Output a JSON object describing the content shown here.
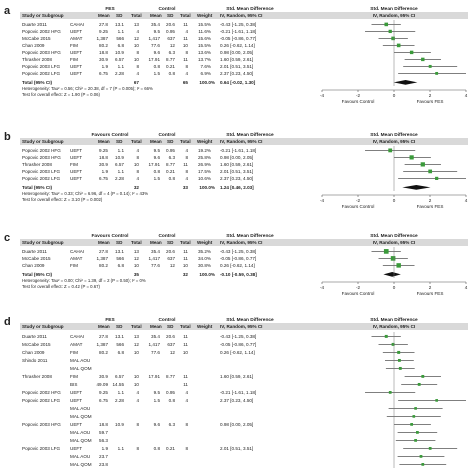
{
  "panels": [
    {
      "letter": "a",
      "group_exp": "FES",
      "group_ctl": "Control",
      "header_cols": [
        "Study or Subgroup",
        "",
        "Mean",
        "SD",
        "Total",
        "Mean",
        "SD",
        "Total",
        "Weight"
      ],
      "effect_title": "Std. Mean Difference",
      "effect_sub": "IV, Random, 95% CI",
      "plot_title": "Std. Mean Difference",
      "plot_sub": "IV, Random, 95% CI",
      "rows": [
        {
          "study": "Duarte 2011",
          "outcome": "CAHAI",
          "m1": "27.8",
          "sd1": "13.1",
          "n1": "13",
          "m2": "35.4",
          "sd2": "20.6",
          "n2": "11",
          "weight": "15.5%",
          "ci": "-0.43 [-1.25, 0.38]",
          "est": -0.43,
          "lo": -1.25,
          "hi": 0.38,
          "wt": 15.5
        },
        {
          "study": "Popovic 2002 HFG",
          "outcome": "UEFT",
          "m1": "9.25",
          "sd1": "1.1",
          "n1": "4",
          "m2": "9.5",
          "sd2": "0.95",
          "n2": "4",
          "weight": "11.6%",
          "ci": "-0.21 [-1.61, 1.18]",
          "est": -0.21,
          "lo": -1.61,
          "hi": 1.18,
          "wt": 11.6
        },
        {
          "study": "McCabe 2015",
          "outcome": "AMAT",
          "m1": "1,387",
          "sd1": "566",
          "n1": "12",
          "m2": "1,417",
          "sd2": "637",
          "n2": "11",
          "weight": "15.6%",
          "ci": "-0.05 [-0.86, 0.77]",
          "est": -0.05,
          "lo": -0.86,
          "hi": 0.77,
          "wt": 15.6
        },
        {
          "study": "Chan 2009",
          "outcome": "FIM",
          "m1": "80.2",
          "sd1": "6.8",
          "n1": "10",
          "m2": "77.6",
          "sd2": "12",
          "n2": "10",
          "weight": "15.5%",
          "ci": "0.26 [-0.62, 1.14]",
          "est": 0.26,
          "lo": -0.62,
          "hi": 1.14,
          "wt": 15.5
        },
        {
          "study": "Popovic 2003 HFG",
          "outcome": "UEFT",
          "m1": "18.8",
          "sd1": "10.9",
          "n1": "8",
          "m2": "9.6",
          "sd2": "6.3",
          "n2": "8",
          "weight": "13.6%",
          "ci": "0.98 [0.00, 2.05]",
          "est": 0.98,
          "lo": 0.0,
          "hi": 2.05,
          "wt": 13.6
        },
        {
          "study": "Thrasher 2008",
          "outcome": "FIM",
          "m1": "30.9",
          "sd1": "6.57",
          "n1": "10",
          "m2": "17.91",
          "sd2": "8.77",
          "n2": "11",
          "weight": "13.7%",
          "ci": "1.60 [0.59, 2.61]",
          "est": 1.6,
          "lo": 0.59,
          "hi": 2.61,
          "wt": 13.7
        },
        {
          "study": "Popovic 2003 LFG",
          "outcome": "UEFT",
          "m1": "1.9",
          "sd1": "1.1",
          "n1": "8",
          "m2": "0.8",
          "sd2": "0.21",
          "n2": "8",
          "weight": "7.6%",
          "ci": "2.01 [0.51, 3.51]",
          "est": 2.01,
          "lo": 0.51,
          "hi": 3.51,
          "wt": 7.6
        },
        {
          "study": "Popovic 2002 LFG",
          "outcome": "UEFT",
          "m1": "6.75",
          "sd1": "2.28",
          "n1": "4",
          "m2": "1.5",
          "sd2": "0.8",
          "n2": "4",
          "weight": "6.9%",
          "ci": "2.37 [0.23, 4.50]",
          "est": 2.37,
          "lo": 0.23,
          "hi": 4.5,
          "wt": 6.9
        }
      ],
      "total": {
        "label": "Total (95% CI)",
        "n1": "67",
        "n2": "65",
        "weight": "100.0%",
        "ci": "0.64 [-0.02, 1.30]",
        "est": 0.64,
        "lo": -0.02,
        "hi": 1.3
      },
      "het": "Heterogeneity: Tau² = 0.56; Chi² = 20.38, df = 7 (P = 0.005); I² = 66%",
      "overall": "Test for overall effect: Z = 1.90 (P = 0.06)",
      "axis_ticks": [
        -4,
        -2,
        0,
        2,
        4
      ],
      "favours_left": "Favours Control",
      "favours_right": "Favours FES"
    },
    {
      "letter": "b",
      "group_exp": "Favours Control",
      "group_ctl": "Control",
      "header_cols": [
        "Study or Subgroup",
        "",
        "Mean",
        "SD",
        "Total",
        "Mean",
        "SD",
        "Total",
        "Weight"
      ],
      "effect_title": "Std. Mean Difference",
      "effect_sub": "IV, Random, 95% CI",
      "plot_title": "Std. Mean Difference",
      "plot_sub": "IV, Random, 95% CI",
      "rows": [
        {
          "study": "Popovic 2002 HFG",
          "outcome": "UEFT",
          "m1": "9.25",
          "sd1": "1.1",
          "n1": "4",
          "m2": "9.5",
          "sd2": "0.95",
          "n2": "4",
          "weight": "19.2%",
          "ci": "-0.21 [-1.61, 1.18]",
          "est": -0.21,
          "lo": -1.61,
          "hi": 1.18,
          "wt": 19.2
        },
        {
          "study": "Popovic 2003 HFG",
          "outcome": "UEFT",
          "m1": "18.8",
          "sd1": "10.9",
          "n1": "8",
          "m2": "9.6",
          "sd2": "6.3",
          "n2": "8",
          "weight": "25.8%",
          "ci": "0.98 [0.00, 2.05]",
          "est": 0.98,
          "lo": 0.0,
          "hi": 2.05,
          "wt": 25.8
        },
        {
          "study": "Thrasher 2008",
          "outcome": "FIM",
          "m1": "30.9",
          "sd1": "6.57",
          "n1": "10",
          "m2": "17.91",
          "sd2": "8.77",
          "n2": "11",
          "weight": "26.9%",
          "ci": "1.60 [0.59, 2.61]",
          "est": 1.6,
          "lo": 0.59,
          "hi": 2.61,
          "wt": 26.9
        },
        {
          "study": "Popovic 2003 LFG",
          "outcome": "UEFT",
          "m1": "1.9",
          "sd1": "1.1",
          "n1": "8",
          "m2": "0.8",
          "sd2": "0.21",
          "n2": "8",
          "weight": "17.5%",
          "ci": "2.01 [0.51, 3.51]",
          "est": 2.01,
          "lo": 0.51,
          "hi": 3.51,
          "wt": 17.5
        },
        {
          "study": "Popovic 2002 LFG",
          "outcome": "UEFT",
          "m1": "6.75",
          "sd1": "2.28",
          "n1": "4",
          "m2": "1.5",
          "sd2": "0.8",
          "n2": "4",
          "weight": "10.6%",
          "ci": "2.37 [0.23, 4.50]",
          "est": 2.37,
          "lo": 0.23,
          "hi": 4.5,
          "wt": 10.6
        }
      ],
      "total": {
        "label": "Total (95% CI)",
        "n1": "32",
        "n2": "33",
        "weight": "100.0%",
        "ci": "1.24 [0.46, 2.03]",
        "est": 1.24,
        "lo": 0.46,
        "hi": 2.03
      },
      "het": "Heterogeneity: Tau² = 0.33; Chi² = 6.96, df = 4 (P = 0.14); I² = 43%",
      "overall": "Test for overall effect: Z = 3.10 (P = 0.002)",
      "axis_ticks": [
        -4,
        -2,
        0,
        2,
        4
      ],
      "favours_left": "Favours Control",
      "favours_right": "Favours FES"
    },
    {
      "letter": "c",
      "group_exp": "Favours Control",
      "group_ctl": "Control",
      "header_cols": [
        "Study or Subgroup",
        "",
        "Mean",
        "SD",
        "Total",
        "Mean",
        "SD",
        "Total",
        "Weight"
      ],
      "effect_title": "Std. Mean Difference",
      "effect_sub": "IV, Random, 95% CI",
      "plot_title": "Std. Mean Difference",
      "plot_sub": "IV, Random, 95% CI",
      "rows": [
        {
          "study": "Duarte 2011",
          "outcome": "CAHAI",
          "m1": "27.8",
          "sd1": "13.1",
          "n1": "13",
          "m2": "35.4",
          "sd2": "20.6",
          "n2": "11",
          "weight": "35.2%",
          "ci": "-0.43 [-1.25, 0.38]",
          "est": -0.43,
          "lo": -1.25,
          "hi": 0.38,
          "wt": 35.2
        },
        {
          "study": "McCabe 2015",
          "outcome": "AMAT",
          "m1": "1,387",
          "sd1": "566",
          "n1": "12",
          "m2": "1,417",
          "sd2": "637",
          "n2": "11",
          "weight": "34.0%",
          "ci": "-0.05 [-0.86, 0.77]",
          "est": -0.05,
          "lo": -0.86,
          "hi": 0.77,
          "wt": 34.0
        },
        {
          "study": "Chan 2009",
          "outcome": "FIM",
          "m1": "80.2",
          "sd1": "6.8",
          "n1": "10",
          "m2": "77.6",
          "sd2": "12",
          "n2": "10",
          "weight": "30.8%",
          "ci": "0.26 [-0.62, 1.14]",
          "est": 0.26,
          "lo": -0.62,
          "hi": 1.14,
          "wt": 30.8
        }
      ],
      "total": {
        "label": "Total (95% CI)",
        "n1": "35",
        "n2": "32",
        "weight": "100.0%",
        "ci": "-0.10 [-0.59, 0.38]",
        "est": -0.1,
        "lo": -0.59,
        "hi": 0.38
      },
      "het": "Heterogeneity: Tau² = 0.00; Chi² = 1.39, df = 2 (P = 0.50); I² = 0%",
      "overall": "Test for overall effect: Z = 0.42 (P = 0.67)",
      "axis_ticks": [
        -4,
        -2,
        0,
        2,
        4
      ],
      "favours_left": "Favours Control",
      "favours_right": "Favours FES"
    },
    {
      "letter": "d",
      "group_exp": "FES",
      "group_ctl": "Control",
      "header_cols": [
        "Study or Subgroup",
        "",
        "Mean",
        "SD",
        "Total",
        "Mean",
        "SD",
        "Total",
        "Weight"
      ],
      "effect_title": "Std. Mean Difference",
      "effect_sub": "IV, Random, 95% CI",
      "plot_title": "Std. Mean Difference",
      "plot_sub": "IV, Random, 95% CI",
      "rows": [
        {
          "study": "Duarte 2011",
          "outcome": "CAHAI",
          "m1": "27.8",
          "sd1": "13.1",
          "n1": "13",
          "m2": "35.4",
          "sd2": "20.6",
          "n2": "11",
          "weight": "",
          "ci": "-0.43 [-1.25, 0.38]",
          "est": -0.43,
          "lo": -1.25,
          "hi": 0.38,
          "wt": 8
        },
        {
          "study": "McCabe 2015",
          "outcome": "AMAT",
          "m1": "1,387",
          "sd1": "566",
          "n1": "12",
          "m2": "1,417",
          "sd2": "637",
          "n2": "11",
          "weight": "",
          "ci": "-0.05 [-0.86, 0.77]",
          "est": -0.05,
          "lo": -0.86,
          "hi": 0.77,
          "wt": 8
        },
        {
          "study": "Chan 2009",
          "outcome": "FIM",
          "m1": "80.2",
          "sd1": "6.8",
          "n1": "10",
          "m2": "77.6",
          "sd2": "12",
          "n2": "10",
          "weight": "",
          "ci": "0.26 [-0.62, 1.14]",
          "est": 0.26,
          "lo": -0.62,
          "hi": 1.14,
          "wt": 8
        },
        {
          "study": "Shindo 2011",
          "outcome": "MAL AOU",
          "m1": "",
          "sd1": "",
          "n1": "",
          "m2": "",
          "sd2": "",
          "n2": "",
          "weight": "",
          "ci": "",
          "est": 0.3,
          "lo": -0.5,
          "hi": 1.1,
          "wt": 7
        },
        {
          "study": "",
          "outcome": "MAL QOM",
          "m1": "",
          "sd1": "",
          "n1": "",
          "m2": "",
          "sd2": "",
          "n2": "",
          "weight": "",
          "ci": "",
          "est": 0.35,
          "lo": -0.45,
          "hi": 1.15,
          "wt": 7
        },
        {
          "study": "Thrasher 2008",
          "outcome": "FIM",
          "m1": "30.9",
          "sd1": "6.57",
          "n1": "10",
          "m2": "17.91",
          "sd2": "8.77",
          "n2": "11",
          "weight": "",
          "ci": "1.60 [0.59, 2.61]",
          "est": 1.6,
          "lo": 0.59,
          "hi": 2.61,
          "wt": 7
        },
        {
          "study": "",
          "outcome": "BIS",
          "m1": "49.09",
          "sd1": "14.55",
          "n1": "10",
          "m2": "",
          "sd2": "",
          "n2": "11",
          "weight": "",
          "ci": "",
          "est": 1.4,
          "lo": 0.4,
          "hi": 2.4,
          "wt": 7
        },
        {
          "study": "Popovic 2002 HFG",
          "outcome": "UEFT",
          "m1": "9.25",
          "sd1": "1.1",
          "n1": "4",
          "m2": "9.5",
          "sd2": "0.95",
          "n2": "4",
          "weight": "",
          "ci": "-0.21 [-1.61, 1.18]",
          "est": -0.21,
          "lo": -1.61,
          "hi": 1.18,
          "wt": 6
        },
        {
          "study": "Popovic 2002 LFG",
          "outcome": "UEFT",
          "m1": "6.75",
          "sd1": "2.28",
          "n1": "4",
          "m2": "1.5",
          "sd2": "0.8",
          "n2": "4",
          "weight": "",
          "ci": "2.37 [0.23, 4.50]",
          "est": 2.37,
          "lo": 0.23,
          "hi": 4.5,
          "wt": 5
        },
        {
          "study": "",
          "outcome": "MAL AOU",
          "m1": "",
          "sd1": "",
          "n1": "",
          "m2": "",
          "sd2": "",
          "n2": "",
          "weight": "",
          "ci": "",
          "est": 1.2,
          "lo": -0.3,
          "hi": 2.7,
          "wt": 5
        },
        {
          "study": "",
          "outcome": "MAL QOM",
          "m1": "",
          "sd1": "",
          "n1": "",
          "m2": "",
          "sd2": "",
          "n2": "",
          "weight": "",
          "ci": "",
          "est": 1.1,
          "lo": -0.4,
          "hi": 2.6,
          "wt": 5
        },
        {
          "study": "Popovic 2003 HFG",
          "outcome": "UEFT",
          "m1": "18.8",
          "sd1": "10.9",
          "n1": "8",
          "m2": "9.6",
          "sd2": "6.3",
          "n2": "8",
          "weight": "",
          "ci": "0.98 [0.00, 2.05]",
          "est": 0.98,
          "lo": 0.0,
          "hi": 2.05,
          "wt": 6
        },
        {
          "study": "",
          "outcome": "MAL AOU",
          "m1": "59.7",
          "sd1": "",
          "n1": "",
          "m2": "",
          "sd2": "",
          "n2": "",
          "weight": "",
          "ci": "",
          "est": 1.3,
          "lo": 0.2,
          "hi": 2.4,
          "wt": 6
        },
        {
          "study": "",
          "outcome": "MAL QOM",
          "m1": "56.3",
          "sd1": "",
          "n1": "",
          "m2": "",
          "sd2": "",
          "n2": "",
          "weight": "",
          "ci": "",
          "est": 1.2,
          "lo": 0.1,
          "hi": 2.3,
          "wt": 6
        },
        {
          "study": "Popovic 2003 LFG",
          "outcome": "UEFT",
          "m1": "1.9",
          "sd1": "1.1",
          "n1": "8",
          "m2": "0.8",
          "sd2": "0.21",
          "n2": "8",
          "weight": "",
          "ci": "2.01 [0.51, 3.51]",
          "est": 2.01,
          "lo": 0.51,
          "hi": 3.51,
          "wt": 6
        },
        {
          "study": "",
          "outcome": "MAL AOU",
          "m1": "23.7",
          "sd1": "",
          "n1": "",
          "m2": "",
          "sd2": "",
          "n2": "",
          "weight": "",
          "ci": "",
          "est": 1.5,
          "lo": 0.2,
          "hi": 2.8,
          "wt": 6
        },
        {
          "study": "",
          "outcome": "MAL QOM",
          "m1": "23.8",
          "sd1": "",
          "n1": "",
          "m2": "",
          "sd2": "",
          "n2": "",
          "weight": "",
          "ci": "",
          "est": 1.6,
          "lo": 0.3,
          "hi": 2.9,
          "wt": 6
        }
      ],
      "total": null,
      "het": "",
      "overall": "",
      "axis_ticks": [],
      "favours_left": "",
      "favours_right": ""
    }
  ],
  "colors": {
    "header_bg": "#d9d9d9",
    "marker": "#3a9a3a",
    "text": "#222222",
    "line": "#555555",
    "diamond": "#111111"
  },
  "chart_data": [
    {
      "type": "forest",
      "panel": "a",
      "x_axis": "Std. Mean Difference (IV, Random, 95% CI)",
      "xlim": [
        -4,
        4
      ],
      "studies": [
        "Duarte 2011",
        "Popovic 2002 HFG",
        "McCabe 2015",
        "Chan 2009",
        "Popovic 2003 HFG",
        "Thrasher 2008",
        "Popovic 2003 LFG",
        "Popovic 2002 LFG"
      ],
      "estimates": [
        -0.43,
        -0.21,
        -0.05,
        0.26,
        0.98,
        1.6,
        2.01,
        2.37
      ],
      "pooled": 0.64
    },
    {
      "type": "forest",
      "panel": "b",
      "xlim": [
        -4,
        4
      ],
      "estimates": [
        -0.21,
        0.98,
        1.6,
        2.01,
        2.37
      ],
      "pooled": 1.24
    },
    {
      "type": "forest",
      "panel": "c",
      "xlim": [
        -4,
        4
      ],
      "estimates": [
        -0.43,
        -0.05,
        0.26
      ],
      "pooled": -0.1
    }
  ]
}
